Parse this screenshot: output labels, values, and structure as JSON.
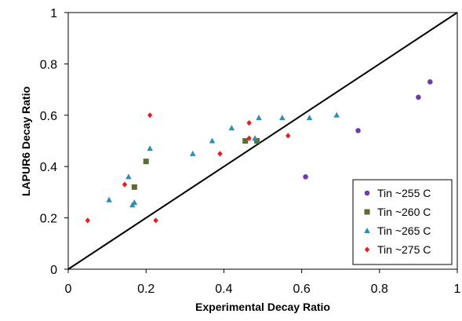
{
  "chart_data": {
    "type": "scatter",
    "xlabel": "Experimental Decay Ratio",
    "ylabel": "LAPUR6 Decay Ratio",
    "xlim": [
      0,
      1
    ],
    "ylim": [
      0,
      1
    ],
    "x_ticks": [
      "0",
      "0.2",
      "0.4",
      "0.6",
      "0.8",
      "1"
    ],
    "y_ticks": [
      "0",
      "0.2",
      "0.4",
      "0.6",
      "0.8",
      "1"
    ],
    "grid": false,
    "legend_position": "bottom-right",
    "reference_line": {
      "x": [
        0,
        1
      ],
      "y": [
        0,
        1
      ],
      "color": "#000000"
    },
    "series": [
      {
        "name": "Tin ~255 C",
        "marker": "circle",
        "color": "#6a3fa8",
        "points": [
          [
            0.61,
            0.36
          ],
          [
            0.745,
            0.54
          ],
          [
            0.9,
            0.67
          ],
          [
            0.93,
            0.73
          ]
        ]
      },
      {
        "name": "Tin ~260 C",
        "marker": "square",
        "color": "#5e6b35",
        "points": [
          [
            0.17,
            0.32
          ],
          [
            0.2,
            0.42
          ],
          [
            0.455,
            0.5
          ],
          [
            0.485,
            0.5
          ]
        ]
      },
      {
        "name": "Tin ~265 C",
        "marker": "triangle",
        "color": "#2f8fb3",
        "points": [
          [
            0.105,
            0.27
          ],
          [
            0.155,
            0.36
          ],
          [
            0.165,
            0.25
          ],
          [
            0.17,
            0.26
          ],
          [
            0.21,
            0.47
          ],
          [
            0.32,
            0.45
          ],
          [
            0.37,
            0.5
          ],
          [
            0.42,
            0.55
          ],
          [
            0.48,
            0.51
          ],
          [
            0.49,
            0.59
          ],
          [
            0.55,
            0.59
          ],
          [
            0.62,
            0.59
          ],
          [
            0.69,
            0.6
          ]
        ]
      },
      {
        "name": "Tin ~275 C",
        "marker": "diamond",
        "color": "#e02020",
        "points": [
          [
            0.05,
            0.19
          ],
          [
            0.145,
            0.33
          ],
          [
            0.21,
            0.6
          ],
          [
            0.225,
            0.19
          ],
          [
            0.39,
            0.45
          ],
          [
            0.465,
            0.51
          ],
          [
            0.465,
            0.57
          ],
          [
            0.565,
            0.52
          ]
        ]
      }
    ]
  }
}
